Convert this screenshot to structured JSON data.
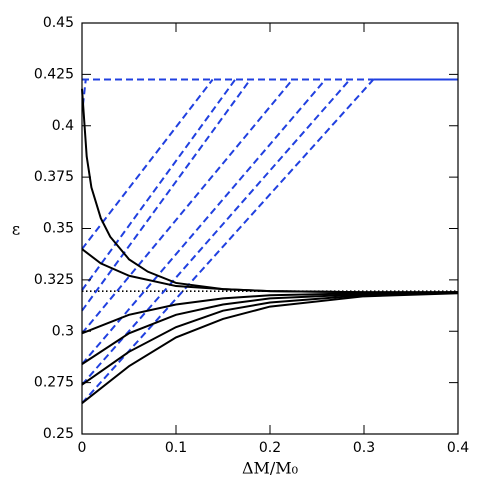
{
  "chart_data": {
    "type": "line",
    "xlabel": "ΔM/M₀",
    "ylabel": "ε",
    "xlim": [
      0,
      0.4
    ],
    "ylim": [
      0.25,
      0.45
    ],
    "xticks": [
      0,
      0.1,
      0.2,
      0.3,
      0.4
    ],
    "yticks": [
      0.25,
      0.275,
      0.3,
      0.325,
      0.35,
      0.375,
      0.4,
      0.425,
      0.45
    ],
    "series": [
      {
        "color": "#000000",
        "style": "dotted",
        "x": [
          0,
          0.4
        ],
        "values": [
          0.3195,
          0.3195
        ]
      },
      {
        "color": "#2040e0",
        "style": "dashed",
        "x": [
          0,
          0.31
        ],
        "values": [
          0.4225,
          0.4225
        ]
      },
      {
        "color": "#2040e0",
        "style": "solid",
        "x": [
          0.31,
          0.4
        ],
        "values": [
          0.4225,
          0.4225
        ]
      },
      {
        "color": "#2040e0",
        "style": "dashed",
        "x": [
          0.001,
          0.004
        ],
        "values": [
          0.41,
          0.4225
        ]
      },
      {
        "color": "#2040e0",
        "style": "dashed",
        "x": [
          0,
          0.139
        ],
        "values": [
          0.34,
          0.4225
        ]
      },
      {
        "color": "#2040e0",
        "style": "dashed",
        "x": [
          0,
          0.163
        ],
        "values": [
          0.32,
          0.4225
        ]
      },
      {
        "color": "#2040e0",
        "style": "dashed",
        "x": [
          0,
          0.179
        ],
        "values": [
          0.31,
          0.4225
        ]
      },
      {
        "color": "#2040e0",
        "style": "dashed",
        "x": [
          0,
          0.224
        ],
        "values": [
          0.299,
          0.4225
        ]
      },
      {
        "color": "#2040e0",
        "style": "dashed",
        "x": [
          0,
          0.259
        ],
        "values": [
          0.284,
          0.4225
        ]
      },
      {
        "color": "#2040e0",
        "style": "dashed",
        "x": [
          0,
          0.285
        ],
        "values": [
          0.274,
          0.4225
        ]
      },
      {
        "color": "#2040e0",
        "style": "dashed",
        "x": [
          0,
          0.31
        ],
        "values": [
          0.265,
          0.4225
        ]
      },
      {
        "color": "#000000",
        "style": "solid",
        "x": [
          0,
          0.005,
          0.01,
          0.02,
          0.03,
          0.05,
          0.07,
          0.1,
          0.15,
          0.2,
          0.3,
          0.4
        ],
        "values": [
          0.418,
          0.385,
          0.37,
          0.355,
          0.346,
          0.335,
          0.329,
          0.3235,
          0.3205,
          0.3195,
          0.319,
          0.319
        ]
      },
      {
        "color": "#000000",
        "style": "solid",
        "x": [
          0,
          0.02,
          0.05,
          0.1,
          0.15,
          0.2,
          0.3,
          0.4
        ],
        "values": [
          0.34,
          0.333,
          0.327,
          0.322,
          0.3205,
          0.3195,
          0.319,
          0.319
        ]
      },
      {
        "color": "#000000",
        "style": "solid",
        "x": [
          0,
          0.05,
          0.1,
          0.15,
          0.2,
          0.3,
          0.4
        ],
        "values": [
          0.299,
          0.308,
          0.313,
          0.316,
          0.3175,
          0.3185,
          0.319
        ]
      },
      {
        "color": "#000000",
        "style": "solid",
        "x": [
          0,
          0.05,
          0.1,
          0.15,
          0.2,
          0.3,
          0.4
        ],
        "values": [
          0.284,
          0.299,
          0.308,
          0.313,
          0.316,
          0.318,
          0.319
        ]
      },
      {
        "color": "#000000",
        "style": "solid",
        "x": [
          0,
          0.05,
          0.1,
          0.15,
          0.2,
          0.3,
          0.4
        ],
        "values": [
          0.274,
          0.29,
          0.302,
          0.31,
          0.314,
          0.3175,
          0.319
        ]
      },
      {
        "color": "#000000",
        "style": "solid",
        "x": [
          0,
          0.05,
          0.1,
          0.15,
          0.2,
          0.3,
          0.4
        ],
        "values": [
          0.265,
          0.283,
          0.297,
          0.306,
          0.312,
          0.317,
          0.3185
        ]
      }
    ]
  }
}
